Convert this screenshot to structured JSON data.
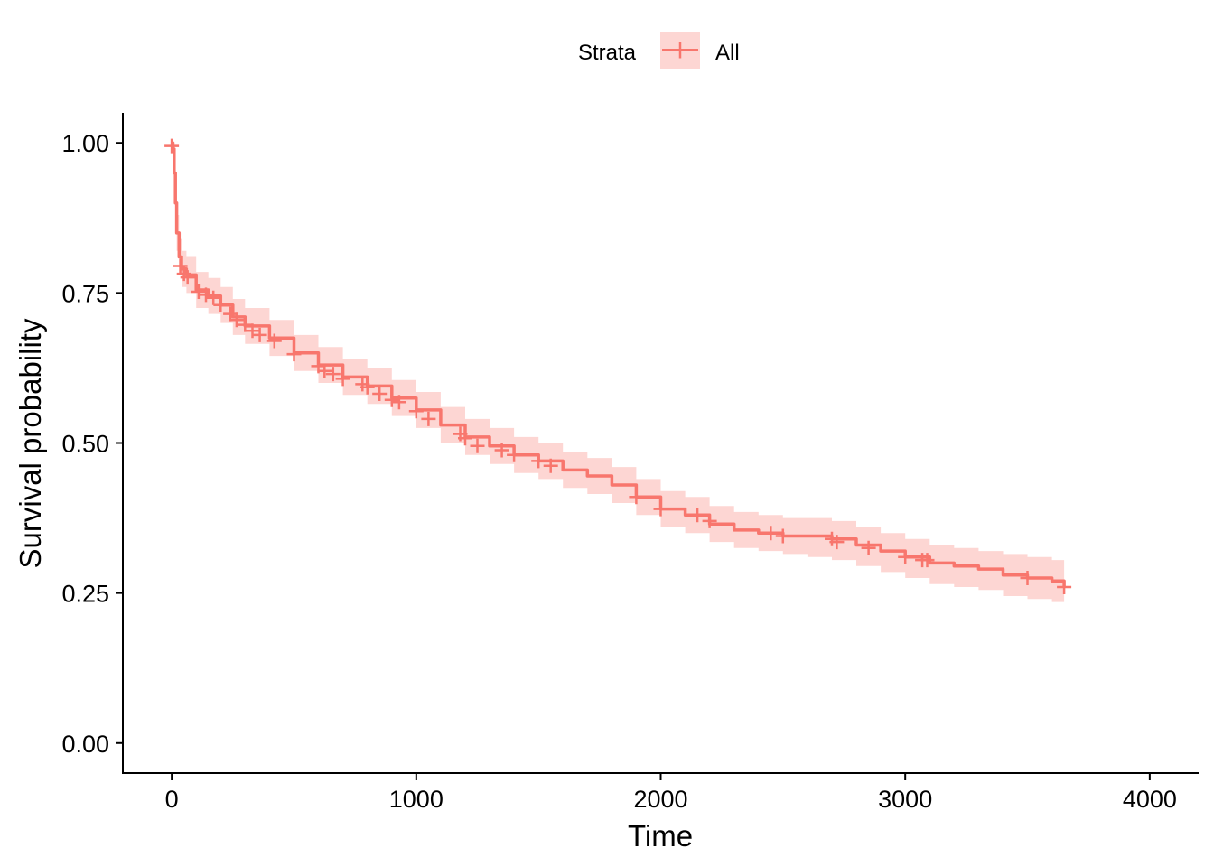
{
  "chart_data": {
    "type": "line",
    "title": "",
    "xlabel": "Time",
    "ylabel": "Survival probability",
    "xlim": [
      -200,
      4200
    ],
    "ylim": [
      -0.05,
      1.05
    ],
    "xticks": [
      0,
      1000,
      2000,
      3000,
      4000
    ],
    "xtick_labels": [
      "0",
      "1000",
      "2000",
      "3000",
      "4000"
    ],
    "yticks": [
      0.0,
      0.25,
      0.5,
      0.75,
      1.0
    ],
    "ytick_labels": [
      "0.00",
      "0.25",
      "0.50",
      "0.75",
      "1.00"
    ],
    "grid": false,
    "legend": {
      "title": "Strata",
      "position": "top",
      "entries": [
        "All"
      ]
    },
    "color": "#F8766D",
    "band_color": "#F8766D",
    "series": [
      {
        "name": "All",
        "x": [
          0,
          5,
          10,
          15,
          20,
          30,
          40,
          60,
          100,
          150,
          200,
          250,
          300,
          400,
          500,
          600,
          700,
          800,
          900,
          1000,
          1100,
          1200,
          1300,
          1400,
          1500,
          1600,
          1700,
          1800,
          1900,
          2000,
          2100,
          2200,
          2300,
          2400,
          2500,
          2600,
          2700,
          2800,
          2900,
          3000,
          3100,
          3200,
          3300,
          3400,
          3500,
          3600,
          3650
        ],
        "y": [
          1.0,
          0.99,
          0.95,
          0.9,
          0.85,
          0.81,
          0.79,
          0.78,
          0.755,
          0.745,
          0.73,
          0.71,
          0.695,
          0.675,
          0.65,
          0.63,
          0.61,
          0.595,
          0.575,
          0.555,
          0.53,
          0.51,
          0.495,
          0.48,
          0.47,
          0.455,
          0.445,
          0.43,
          0.41,
          0.39,
          0.38,
          0.365,
          0.355,
          0.35,
          0.345,
          0.345,
          0.34,
          0.33,
          0.32,
          0.31,
          0.3,
          0.295,
          0.29,
          0.28,
          0.275,
          0.27,
          0.26
        ],
        "lower": [
          1.0,
          0.98,
          0.93,
          0.87,
          0.82,
          0.78,
          0.76,
          0.75,
          0.725,
          0.715,
          0.7,
          0.68,
          0.665,
          0.645,
          0.62,
          0.6,
          0.58,
          0.565,
          0.545,
          0.525,
          0.5,
          0.48,
          0.465,
          0.45,
          0.44,
          0.425,
          0.415,
          0.4,
          0.38,
          0.36,
          0.35,
          0.335,
          0.325,
          0.32,
          0.315,
          0.31,
          0.305,
          0.295,
          0.285,
          0.275,
          0.265,
          0.26,
          0.255,
          0.245,
          0.24,
          0.235,
          0.225
        ],
        "upper": [
          1.0,
          1.0,
          0.97,
          0.93,
          0.88,
          0.84,
          0.82,
          0.81,
          0.785,
          0.775,
          0.76,
          0.74,
          0.725,
          0.705,
          0.68,
          0.66,
          0.64,
          0.625,
          0.605,
          0.585,
          0.56,
          0.54,
          0.525,
          0.51,
          0.5,
          0.485,
          0.475,
          0.46,
          0.44,
          0.42,
          0.41,
          0.395,
          0.385,
          0.38,
          0.375,
          0.375,
          0.37,
          0.36,
          0.35,
          0.34,
          0.33,
          0.325,
          0.32,
          0.315,
          0.31,
          0.305,
          0.295
        ],
        "censored": [
          [
            0,
            0.995
          ],
          [
            35,
            0.795
          ],
          [
            50,
            0.782
          ],
          [
            65,
            0.776
          ],
          [
            110,
            0.752
          ],
          [
            140,
            0.747
          ],
          [
            170,
            0.742
          ],
          [
            200,
            0.73
          ],
          [
            240,
            0.715
          ],
          [
            265,
            0.705
          ],
          [
            300,
            0.697
          ],
          [
            330,
            0.687
          ],
          [
            360,
            0.68
          ],
          [
            420,
            0.67
          ],
          [
            500,
            0.648
          ],
          [
            600,
            0.628
          ],
          [
            625,
            0.62
          ],
          [
            660,
            0.615
          ],
          [
            700,
            0.607
          ],
          [
            780,
            0.598
          ],
          [
            800,
            0.593
          ],
          [
            850,
            0.582
          ],
          [
            900,
            0.572
          ],
          [
            930,
            0.568
          ],
          [
            1000,
            0.553
          ],
          [
            1050,
            0.54
          ],
          [
            1180,
            0.515
          ],
          [
            1200,
            0.508
          ],
          [
            1250,
            0.495
          ],
          [
            1350,
            0.488
          ],
          [
            1400,
            0.48
          ],
          [
            1500,
            0.47
          ],
          [
            1550,
            0.462
          ],
          [
            1900,
            0.41
          ],
          [
            2000,
            0.39
          ],
          [
            2150,
            0.38
          ],
          [
            2200,
            0.37
          ],
          [
            2450,
            0.35
          ],
          [
            2500,
            0.345
          ],
          [
            2700,
            0.34
          ],
          [
            2720,
            0.335
          ],
          [
            2850,
            0.325
          ],
          [
            3000,
            0.31
          ],
          [
            3070,
            0.305
          ],
          [
            3090,
            0.305
          ],
          [
            3500,
            0.275
          ],
          [
            3650,
            0.26
          ]
        ]
      }
    ]
  }
}
